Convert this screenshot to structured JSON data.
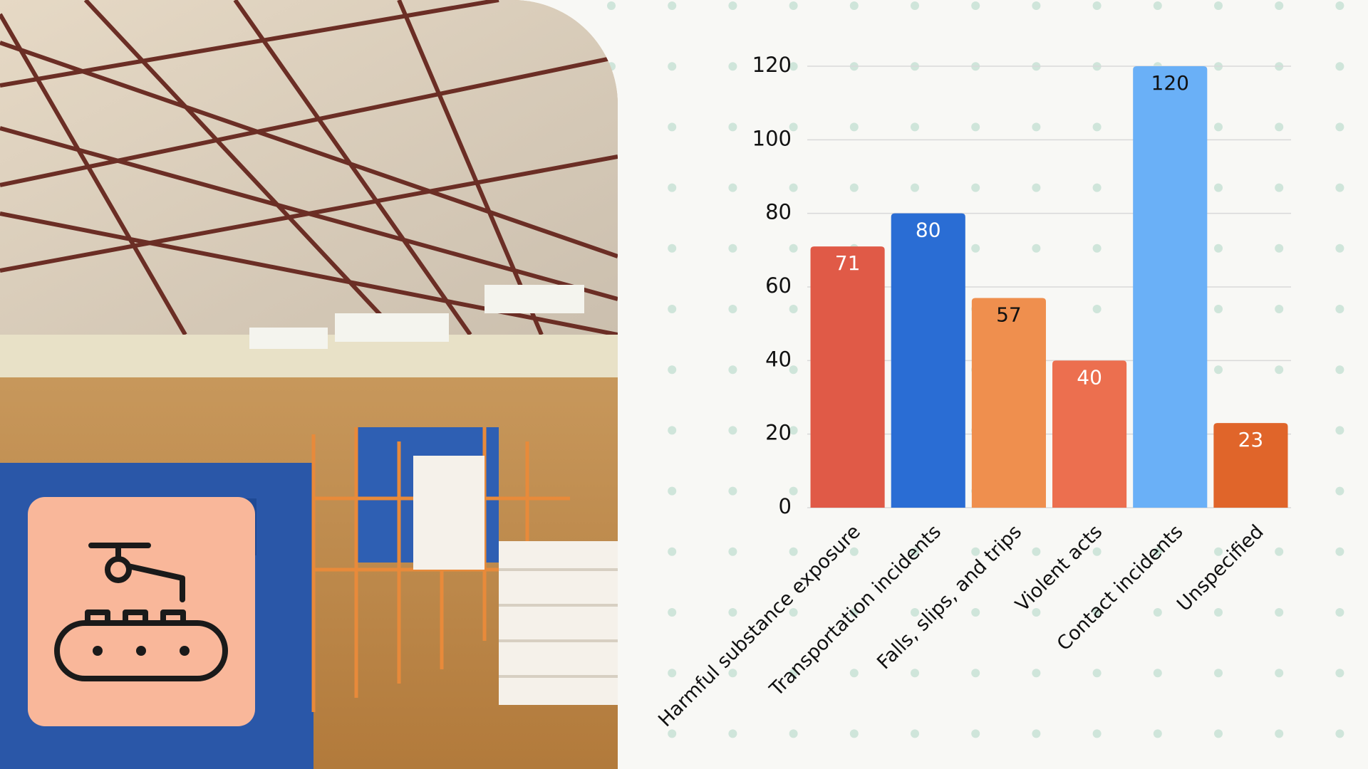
{
  "chart_data": {
    "type": "bar",
    "categories": [
      "Harmful substance exposure",
      "Transportation incidents",
      "Falls, slips, and trips",
      "Violent acts",
      "Contact incidents",
      "Unspecified"
    ],
    "values": [
      71,
      80,
      57,
      40,
      120,
      23
    ],
    "colors": [
      "#e05a47",
      "#2a6dd4",
      "#ef8f4e",
      "#ec6f4f",
      "#6ab0f7",
      "#e0652a"
    ],
    "ylim": [
      0,
      120
    ],
    "yticks": [
      0,
      20,
      40,
      60,
      80,
      100,
      120
    ],
    "grid": true
  }
}
